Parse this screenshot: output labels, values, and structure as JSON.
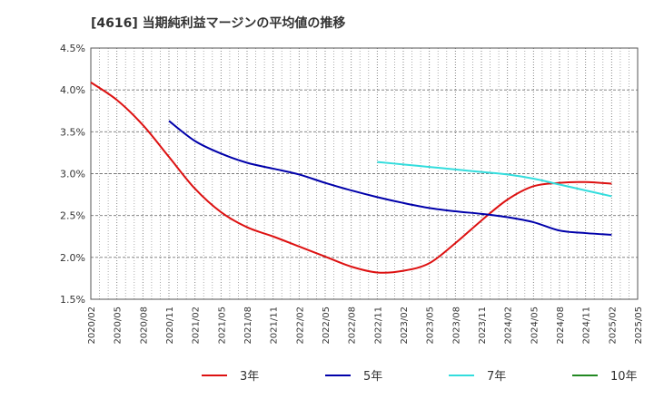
{
  "chart_data": {
    "type": "line",
    "title": "[4616]  当期純利益マージンの平均値の推移",
    "xlabel": "",
    "ylabel": "",
    "ylim": [
      1.5,
      4.5
    ],
    "y_ticks": [
      "1.5%",
      "2.0%",
      "2.5%",
      "3.0%",
      "3.5%",
      "4.0%",
      "4.5%"
    ],
    "x_ticks": [
      "2020/02",
      "2020/05",
      "2020/08",
      "2020/11",
      "2021/02",
      "2021/05",
      "2021/08",
      "2021/11",
      "2022/02",
      "2022/05",
      "2022/08",
      "2022/11",
      "2023/02",
      "2023/05",
      "2023/08",
      "2023/11",
      "2024/02",
      "2024/05",
      "2024/08",
      "2024/11",
      "2025/02",
      "2025/05"
    ],
    "grid": true,
    "legend_position": "bottom",
    "series": [
      {
        "name": "3年",
        "color": "#dd1111",
        "points": [
          [
            "2020/02",
            4.09
          ],
          [
            "2020/05",
            3.88
          ],
          [
            "2020/08",
            3.58
          ],
          [
            "2020/11",
            3.2
          ],
          [
            "2021/02",
            2.82
          ],
          [
            "2021/05",
            2.54
          ],
          [
            "2021/08",
            2.36
          ],
          [
            "2021/11",
            2.25
          ],
          [
            "2022/02",
            2.13
          ],
          [
            "2022/05",
            2.01
          ],
          [
            "2022/08",
            1.89
          ],
          [
            "2022/11",
            1.82
          ],
          [
            "2023/02",
            1.84
          ],
          [
            "2023/05",
            1.93
          ],
          [
            "2023/08",
            2.17
          ],
          [
            "2023/11",
            2.44
          ],
          [
            "2024/02",
            2.69
          ],
          [
            "2024/05",
            2.85
          ],
          [
            "2024/08",
            2.89
          ],
          [
            "2024/11",
            2.9
          ],
          [
            "2025/02",
            2.88
          ]
        ]
      },
      {
        "name": "5年",
        "color": "#0000aa",
        "points": [
          [
            "2020/11",
            3.63
          ],
          [
            "2021/02",
            3.39
          ],
          [
            "2021/05",
            3.24
          ],
          [
            "2021/08",
            3.13
          ],
          [
            "2021/11",
            3.06
          ],
          [
            "2022/02",
            2.99
          ],
          [
            "2022/05",
            2.89
          ],
          [
            "2022/08",
            2.8
          ],
          [
            "2022/11",
            2.72
          ],
          [
            "2023/02",
            2.65
          ],
          [
            "2023/05",
            2.59
          ],
          [
            "2023/08",
            2.55
          ],
          [
            "2023/11",
            2.52
          ],
          [
            "2024/02",
            2.48
          ],
          [
            "2024/05",
            2.42
          ],
          [
            "2024/08",
            2.32
          ],
          [
            "2024/11",
            2.29
          ],
          [
            "2025/02",
            2.27
          ]
        ]
      },
      {
        "name": "7年",
        "color": "#33dddd",
        "points": [
          [
            "2022/11",
            3.14
          ],
          [
            "2023/02",
            3.11
          ],
          [
            "2023/05",
            3.08
          ],
          [
            "2023/08",
            3.05
          ],
          [
            "2023/11",
            3.02
          ],
          [
            "2024/02",
            2.99
          ],
          [
            "2024/05",
            2.94
          ],
          [
            "2024/08",
            2.87
          ],
          [
            "2024/11",
            2.8
          ],
          [
            "2025/02",
            2.73
          ]
        ]
      },
      {
        "name": "10年",
        "color": "#228822",
        "points": []
      }
    ]
  }
}
